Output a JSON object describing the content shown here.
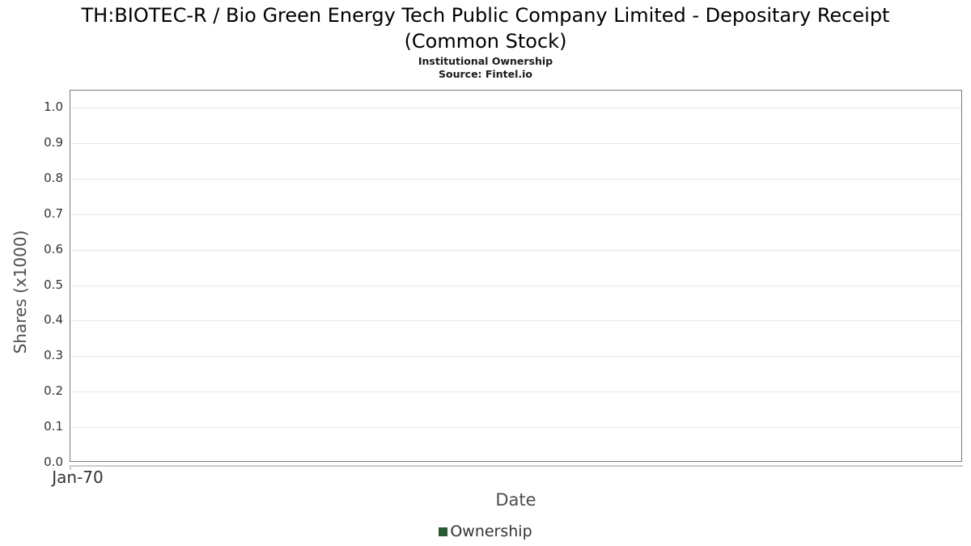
{
  "header": {
    "title_lines": [
      "TH:BIOTEC-R / Bio Green Energy Tech Public Company Limited - Depositary Receipt",
      "(Common Stock)"
    ],
    "subtitle": "Institutional Ownership",
    "source": "Source: Fintel.io"
  },
  "colors": {
    "series_green": "#275b33",
    "plot_border": "#7a7a7a",
    "gridline": "#e7e7e7",
    "axis_line": "#cccccc",
    "tick_label": "#333333",
    "axis_title": "#4d4d4d"
  },
  "chart_data": {
    "type": "line",
    "title": "TH:BIOTEC-R / Bio Green Energy Tech Public Company Limited - Depositary Receipt (Common Stock)",
    "subtitle": "Institutional Ownership",
    "source": "Source: Fintel.io",
    "xlabel": "Date",
    "ylabel": "Shares (x1000)",
    "x_tick_labels": [
      "Jan-70"
    ],
    "y_ticks": [
      0.0,
      0.1,
      0.2,
      0.3,
      0.4,
      0.5,
      0.6,
      0.7,
      0.8,
      0.9,
      1.0
    ],
    "ylim": [
      0,
      1.048
    ],
    "grid": true,
    "legend_position": "bottom",
    "series": [
      {
        "name": "Ownership",
        "color": "#275b33",
        "x": [],
        "values": []
      }
    ]
  }
}
